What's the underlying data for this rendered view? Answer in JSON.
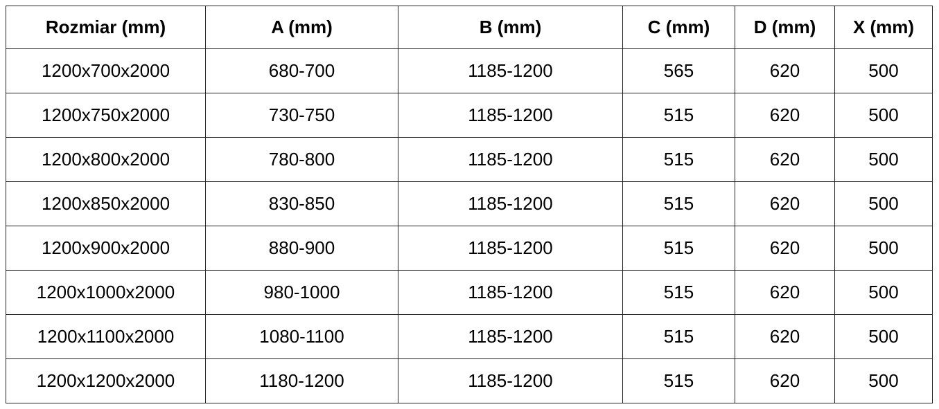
{
  "table": {
    "header": [
      "Rozmiar (mm)",
      "A (mm)",
      "B (mm)",
      "C (mm)",
      "D (mm)",
      "X (mm)"
    ],
    "rows": [
      [
        "1200x700x2000",
        "680-700",
        "1185-1200",
        "565",
        "620",
        "500"
      ],
      [
        "1200x750x2000",
        "730-750",
        "1185-1200",
        "515",
        "620",
        "500"
      ],
      [
        "1200x800x2000",
        "780-800",
        "1185-1200",
        "515",
        "620",
        "500"
      ],
      [
        "1200x850x2000",
        "830-850",
        "1185-1200",
        "515",
        "620",
        "500"
      ],
      [
        "1200x900x2000",
        "880-900",
        "1185-1200",
        "515",
        "620",
        "500"
      ],
      [
        "1200x1000x2000",
        "980-1000",
        "1185-1200",
        "515",
        "620",
        "500"
      ],
      [
        "1200x1100x2000",
        "1080-1100",
        "1185-1200",
        "515",
        "620",
        "500"
      ],
      [
        "1200x1200x2000",
        "1180-1200",
        "1185-1200",
        "515",
        "620",
        "500"
      ]
    ]
  }
}
